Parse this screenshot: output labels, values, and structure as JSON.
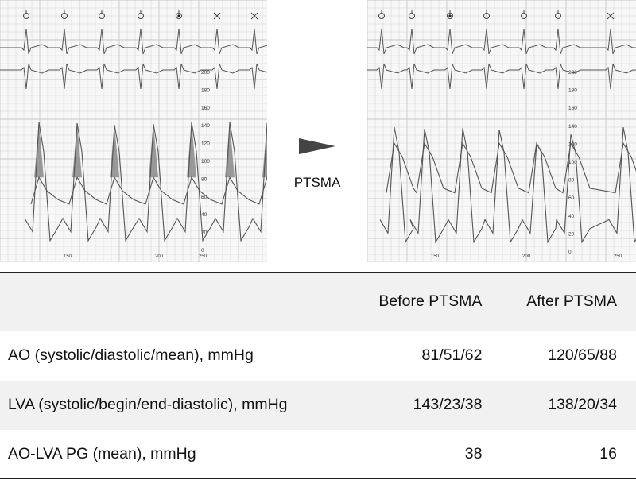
{
  "figure": {
    "arrow_label": "PTSMA",
    "before_panel": {
      "scale_ticks": [
        "200",
        "180",
        "160",
        "140",
        "120",
        "100",
        "80",
        "60",
        "40",
        "20",
        "0"
      ],
      "time_ticks": [
        "150",
        "200",
        "250"
      ],
      "beat_markers": [
        "circle",
        "circle",
        "circle",
        "circle",
        "dot-circle",
        "cross",
        "cross"
      ]
    },
    "after_panel": {
      "scale_ticks": [
        "200",
        "180",
        "160",
        "140",
        "120",
        "100",
        "80",
        "60",
        "40",
        "20",
        "0"
      ],
      "time_ticks": [
        "150",
        "200",
        "250"
      ],
      "beat_markers": [
        "circle",
        "circle",
        "dot-circle",
        "circle",
        "circle",
        "circle",
        "cross"
      ]
    }
  },
  "table": {
    "headers": {
      "parameter": "",
      "before": "Before PTSMA",
      "after": "After PTSMA"
    },
    "rows": [
      {
        "parameter": "AO (systolic/diastolic/mean), mmHg",
        "before": "81/51/62",
        "after": "120/65/88"
      },
      {
        "parameter": "LVA (systolic/begin/end-diastolic), mmHg",
        "before": "143/23/38",
        "after": "138/20/34"
      },
      {
        "parameter": "AO-LVA PG (mean), mmHg",
        "before": "38",
        "after": "16"
      }
    ]
  },
  "colors": {
    "trace": "#555555",
    "grid": "#c8c8c8",
    "shade": "#8a8a8a",
    "arrow": "#444444"
  }
}
